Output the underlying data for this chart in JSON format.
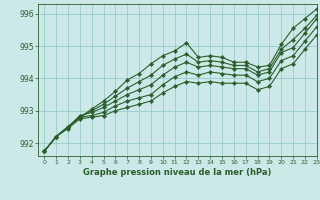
{
  "title": "Graphe pression niveau de la mer (hPa)",
  "bg_color": "#cce8e8",
  "grid_color": "#99cccc",
  "line_color": "#2a5f2a",
  "marker_color": "#2a5f2a",
  "xlim": [
    -0.5,
    23
  ],
  "ylim": [
    991.6,
    996.3
  ],
  "xticks": [
    0,
    1,
    2,
    3,
    4,
    5,
    6,
    7,
    8,
    9,
    10,
    11,
    12,
    13,
    14,
    15,
    16,
    17,
    18,
    19,
    20,
    21,
    22,
    23
  ],
  "yticks": [
    992,
    993,
    994,
    995,
    996
  ],
  "series": [
    [
      991.75,
      992.2,
      992.5,
      992.8,
      993.05,
      993.3,
      993.6,
      993.95,
      994.15,
      994.45,
      994.7,
      994.85,
      995.1,
      994.65,
      994.7,
      994.65,
      994.5,
      994.5,
      994.35,
      994.4,
      995.05,
      995.55,
      995.85,
      996.15
    ],
    [
      991.75,
      992.2,
      992.5,
      992.8,
      993.0,
      993.2,
      993.45,
      993.7,
      993.9,
      994.1,
      994.4,
      994.6,
      994.75,
      994.5,
      994.55,
      994.5,
      994.4,
      994.4,
      994.2,
      994.3,
      994.9,
      995.2,
      995.55,
      995.95
    ],
    [
      991.75,
      992.2,
      992.5,
      992.85,
      992.95,
      993.1,
      993.3,
      993.5,
      993.65,
      993.8,
      994.1,
      994.35,
      994.5,
      994.35,
      994.4,
      994.35,
      994.3,
      994.3,
      994.1,
      994.2,
      994.8,
      994.95,
      995.4,
      995.85
    ],
    [
      991.75,
      992.2,
      992.5,
      992.8,
      992.85,
      992.95,
      993.15,
      993.3,
      993.4,
      993.5,
      993.8,
      994.05,
      994.2,
      994.1,
      994.2,
      994.15,
      994.1,
      994.1,
      993.9,
      994.0,
      994.55,
      994.7,
      995.15,
      995.6
    ],
    [
      991.75,
      992.2,
      992.45,
      992.75,
      992.8,
      992.85,
      993.0,
      993.1,
      993.2,
      993.3,
      993.55,
      993.75,
      993.9,
      993.85,
      993.9,
      993.85,
      993.85,
      993.85,
      993.65,
      993.75,
      994.3,
      994.45,
      994.9,
      995.35
    ]
  ]
}
